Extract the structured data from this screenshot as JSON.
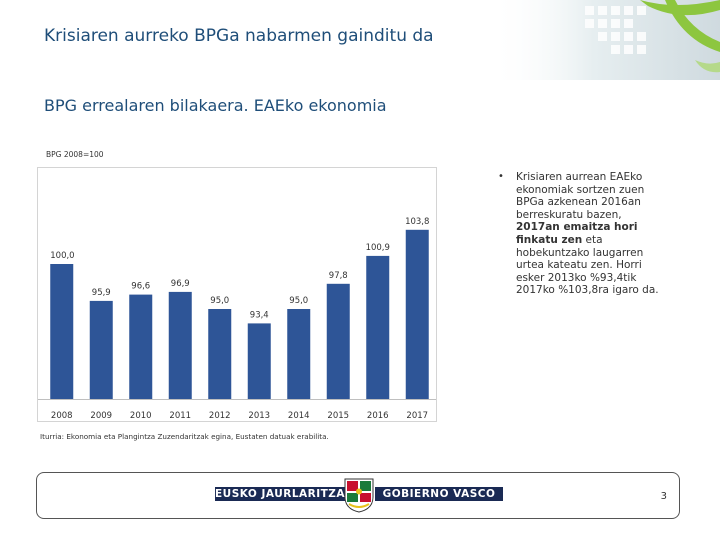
{
  "slide": {
    "title": "Krisiaren aurreko BPGa nabarmen gainditu da",
    "subtitle": "BPG errealaren bilakaera. EAEko ekonomia",
    "bullet_parts": [
      "Krisiaren aurrean EAEko ekonomiak sortzen zuen BPGa azkenean 2016an berreskuratu bazen, ",
      "2017an emaitza hori finkatu zen",
      " eta hobekuntzako laugarren urtea kateatu zen. Horri esker 2013ko %93,4tik 2017ko %103,8ra igaro da."
    ],
    "source": "Iturria: Ekonomia eta Plangintza Zuzendaritzak egina, Eustaten datuak erabilita.",
    "page_number": "3"
  },
  "footer": {
    "left_text": "EUSKO JAURLARITZA",
    "right_text": "GOBIERNO VASCO"
  },
  "colors": {
    "title": "#1f4e79",
    "bar": "#2e5597",
    "footer_band": "#1a2a54",
    "deco_green": "#8dc63f"
  },
  "chart_data": {
    "type": "bar",
    "unit_label": "BPG 2008=100",
    "categories": [
      "2008",
      "2009",
      "2010",
      "2011",
      "2012",
      "2013",
      "2014",
      "2015",
      "2016",
      "2017"
    ],
    "values": [
      100.0,
      95.9,
      96.6,
      96.9,
      95.0,
      93.4,
      95.0,
      97.8,
      100.9,
      103.8
    ],
    "data_labels": [
      "100,0",
      "95,9",
      "96,6",
      "96,9",
      "95,0",
      "93,4",
      "95,0",
      "97,8",
      "100,9",
      "103,8"
    ],
    "ylim": [
      85,
      106
    ],
    "grid": false,
    "legend": false
  }
}
